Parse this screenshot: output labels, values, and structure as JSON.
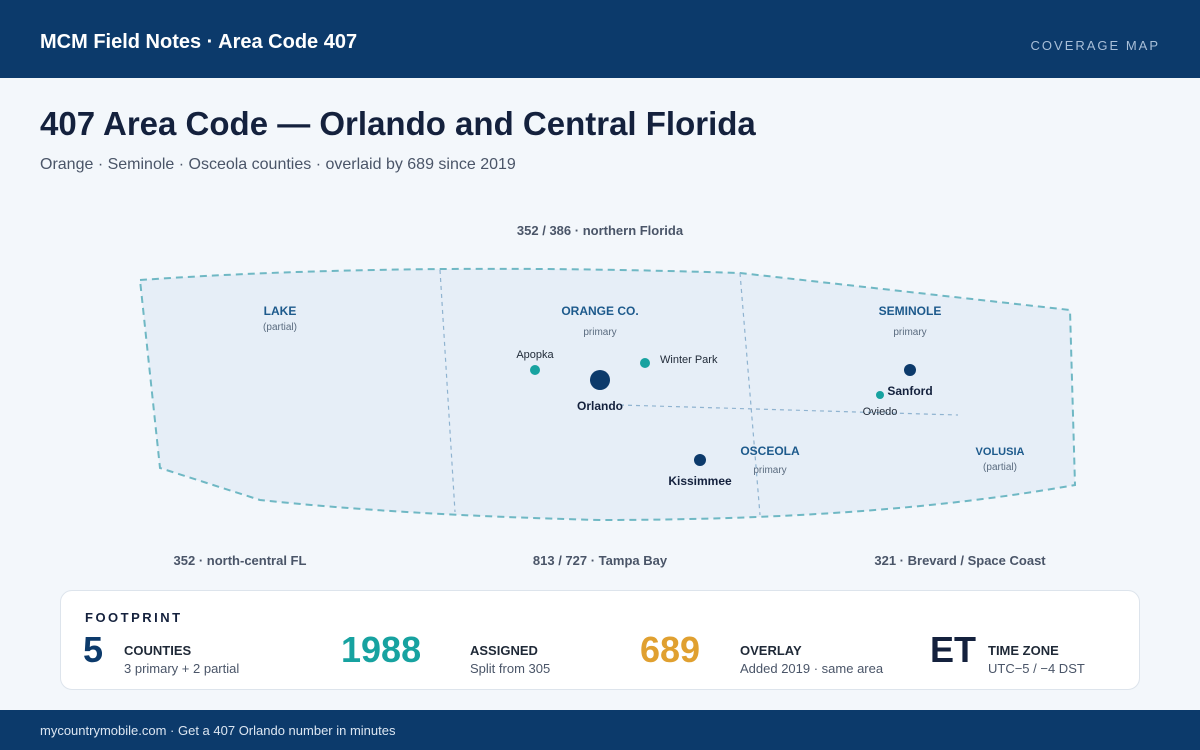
{
  "header": {
    "brand": "MCM Field Notes · Area Code 407",
    "tag": "COVERAGE MAP"
  },
  "page": {
    "title": "407 Area Code — Orlando and Central Florida",
    "subtitle": "Orange · Seminole · Osceola counties · overlaid by 689 since 2019"
  },
  "map": {
    "neighbors": {
      "north": "352 / 386 · northern Florida",
      "southwest": "352 · north-central FL",
      "south": "813 / 727 · Tampa Bay",
      "southeast": "321 · Brevard / Space Coast"
    },
    "regions": [
      {
        "name": "LAKE",
        "note": "(partial)"
      },
      {
        "name": "ORANGE CO.",
        "note": "primary"
      },
      {
        "name": "SEMINOLE",
        "note": "primary"
      },
      {
        "name": "OSCEOLA",
        "note": "primary"
      },
      {
        "name": "VOLUSIA",
        "note": "(partial)"
      }
    ],
    "cities": [
      {
        "name": "Orlando",
        "kind": "major"
      },
      {
        "name": "Apopka",
        "kind": "minor"
      },
      {
        "name": "Winter Park",
        "kind": "minor"
      },
      {
        "name": "Sanford",
        "kind": "hub"
      },
      {
        "name": "Oviedo",
        "kind": "minor"
      },
      {
        "name": "Kissimmee",
        "kind": "hub"
      }
    ],
    "colors": {
      "boundary": "#6fb8c4",
      "fill": "#e6eef7",
      "region_label": "#1d5a8c",
      "major_city": "#0c3a6b",
      "minor_city": "#17a2a0"
    }
  },
  "footprint": {
    "title": "FOOTPRINT",
    "stats": [
      {
        "value": "5",
        "label": "COUNTIES",
        "sub": "3 primary + 2 partial",
        "color": "#0c3a6b"
      },
      {
        "value": "1988",
        "label": "ASSIGNED",
        "sub": "Split from 305",
        "color": "#17a2a0"
      },
      {
        "value": "689",
        "label": "OVERLAY",
        "sub": "Added 2019 · same area",
        "color": "#e0a030"
      },
      {
        "value": "ET",
        "label": "TIME ZONE",
        "sub": "UTC−5 / −4 DST",
        "color": "#14213d"
      }
    ]
  },
  "footer": {
    "text": "mycountrymobile.com · Get a 407 Orlando number in minutes"
  }
}
